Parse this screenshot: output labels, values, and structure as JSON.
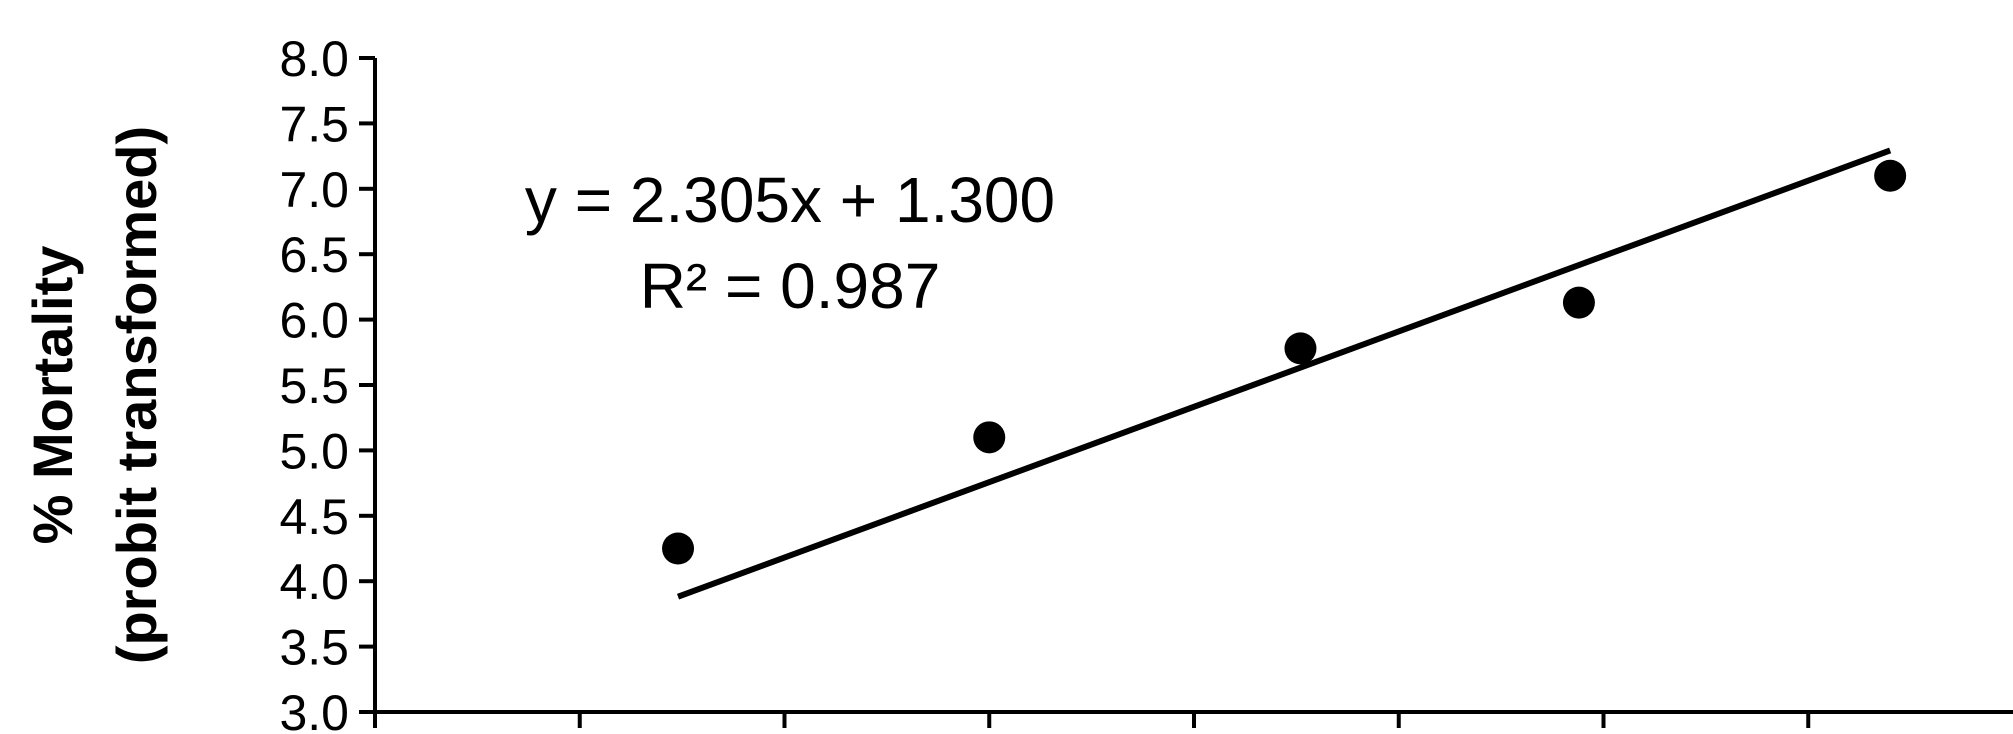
{
  "chart_data": {
    "type": "scatter",
    "title": "",
    "xlabel": "",
    "ylabel_line1": "%  Mortality",
    "ylabel_line2": "(probit transformed)",
    "ylim": [
      3.0,
      8.0
    ],
    "yticks": [
      "8.0",
      "7.5",
      "7.0",
      "6.5",
      "6.0",
      "5.5",
      "5.0",
      "4.5",
      "4.0",
      "3.5",
      "3.0"
    ],
    "x_ticks": [
      0.75,
      1.0,
      1.25,
      1.5,
      1.75,
      2.0,
      2.25,
      2.5
    ],
    "xlim": [
      0.75,
      2.75
    ],
    "series": [
      {
        "x": [
          1.12,
          1.5,
          1.88,
          2.22,
          2.6
        ],
        "y": [
          4.25,
          5.1,
          5.78,
          6.13,
          7.1
        ]
      }
    ],
    "trendline": {
      "slope": 2.305,
      "intercept": 1.3
    },
    "equation_text": "y = 2.305x + 1.300",
    "r2_text": "R² = 0.987",
    "grid": false,
    "legend": "none"
  }
}
